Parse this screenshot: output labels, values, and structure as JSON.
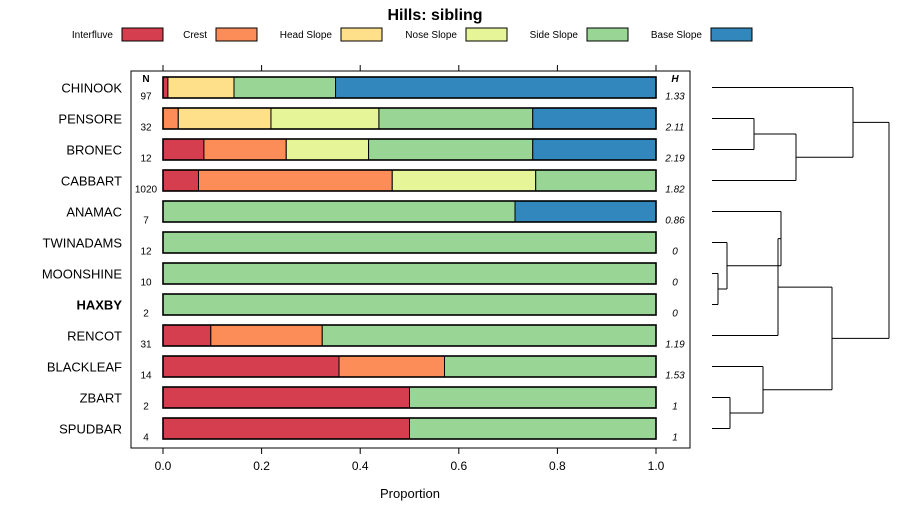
{
  "chart_data": {
    "type": "bar",
    "stacked": true,
    "orientation": "horizontal",
    "title": "Hills: sibling",
    "xlabel": "Proportion",
    "xlim": [
      0,
      1
    ],
    "xticks": [
      0.0,
      0.2,
      0.4,
      0.6,
      0.8,
      1.0
    ],
    "xtick_labels": [
      "0.0",
      "0.2",
      "0.4",
      "0.6",
      "0.8",
      "1.0"
    ],
    "n_header": "N",
    "h_header": "H",
    "legend": [
      {
        "name": "Interfluve",
        "color": "#d53e4f"
      },
      {
        "name": "Crest",
        "color": "#fc8d59"
      },
      {
        "name": "Head Slope",
        "color": "#fee08b"
      },
      {
        "name": "Nose Slope",
        "color": "#e6f598"
      },
      {
        "name": "Side Slope",
        "color": "#99d594"
      },
      {
        "name": "Base Slope",
        "color": "#3288bd"
      }
    ],
    "categories": [
      "CHINOOK",
      "PENSORE",
      "BRONEC",
      "CABBART",
      "ANAMAC",
      "TWINADAMS",
      "MOONSHINE",
      "HAXBY",
      "RENCOT",
      "BLACKLEAF",
      "ZBART",
      "SPUDBAR"
    ],
    "highlight": "HAXBY",
    "n": [
      "97",
      "32",
      "12",
      "1020",
      "7",
      "12",
      "10",
      "2",
      "31",
      "14",
      "2",
      "4"
    ],
    "h": [
      "1.33",
      "2.11",
      "2.19",
      "1.82",
      "0.86",
      "0",
      "0",
      "0",
      "1.19",
      "1.53",
      "1",
      "1"
    ],
    "series": [
      {
        "name": "Interfluve",
        "values": [
          0.01,
          0.0,
          0.083,
          0.072,
          0.0,
          0.0,
          0.0,
          0.0,
          0.097,
          0.357,
          0.5,
          0.5
        ]
      },
      {
        "name": "Crest",
        "values": [
          0.0,
          0.031,
          0.167,
          0.393,
          0.0,
          0.0,
          0.0,
          0.0,
          0.226,
          0.214,
          0.0,
          0.0
        ]
      },
      {
        "name": "Head Slope",
        "values": [
          0.134,
          0.188,
          0.0,
          0.0,
          0.0,
          0.0,
          0.0,
          0.0,
          0.0,
          0.0,
          0.0,
          0.0
        ]
      },
      {
        "name": "Nose Slope",
        "values": [
          0.0,
          0.219,
          0.167,
          0.291,
          0.0,
          0.0,
          0.0,
          0.0,
          0.0,
          0.0,
          0.0,
          0.0
        ]
      },
      {
        "name": "Side Slope",
        "values": [
          0.206,
          0.312,
          0.333,
          0.244,
          0.714,
          1.0,
          1.0,
          1.0,
          0.677,
          0.429,
          0.5,
          0.5
        ]
      },
      {
        "name": "Base Slope",
        "values": [
          0.65,
          0.25,
          0.25,
          0.0,
          0.286,
          0.0,
          0.0,
          0.0,
          0.0,
          0.0,
          0.0,
          0.0
        ]
      }
    ],
    "dendrogram": {
      "description": "hierarchical clustering of series rows",
      "merges": [
        {
          "left": "MOONSHINE",
          "right": "HAXBY",
          "height": 0.02
        },
        {
          "left": "TWINADAMS",
          "right": "MOONSHINE+HAXBY",
          "height": 0.05
        },
        {
          "left": "ZBART",
          "right": "SPUDBAR",
          "height": 0.06
        },
        {
          "left": "PENSORE",
          "right": "BRONEC",
          "height": 0.14
        },
        {
          "left": "ANAMAC",
          "right": "TWINADAMS+MOONSHINE+HAXBY",
          "height": 0.23
        },
        {
          "left": "RENCOT",
          "right": "ANAMAC group",
          "height": 0.22
        },
        {
          "left": "BLACKLEAF",
          "right": "ZBART+SPUDBAR",
          "height": 0.17
        },
        {
          "left": "PENSORE+BRONEC",
          "right": "CABBART",
          "height": 0.28
        },
        {
          "left": "CHINOOK",
          "right": "PENSORE+BRONEC+CABBART",
          "height": 0.47
        },
        {
          "left": "ANAMAC..RENCOT",
          "right": "BLACKLEAF..SPUDBAR",
          "height": 0.4
        },
        {
          "left": "CHINOOK..CABBART",
          "right": "ANAMAC..SPUDBAR",
          "height": 0.59
        }
      ]
    }
  }
}
